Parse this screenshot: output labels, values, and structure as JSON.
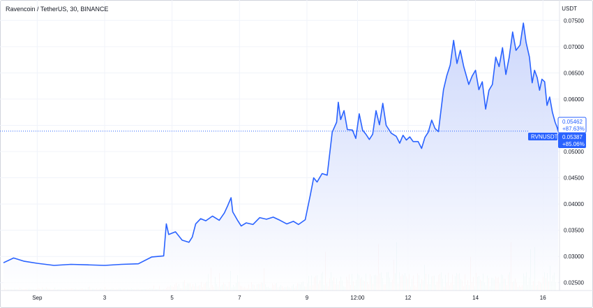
{
  "header": {
    "pair": "Ravencoin / TetherUS, 30, BINANCE",
    "unit": "USDT"
  },
  "price_badges": {
    "last": {
      "price": "0.05462",
      "change": "+87.63%"
    },
    "symbol": {
      "name": "RVNUSDT",
      "price": "0.05387",
      "change": "+85.06%"
    }
  },
  "colors": {
    "line": "#2962ff",
    "area_top": "#c7d3fb",
    "area_bottom": "#ffffff",
    "grid": "#f0f3fa",
    "volume_up": "#8fd3c4",
    "volume_down": "#f6a9a5",
    "badge_bg": "#2962ff",
    "badge_text": "#ffffff"
  },
  "chart_data": {
    "type": "area",
    "title": "Ravencoin / TetherUS, 30, BINANCE",
    "ylabel": "USDT",
    "yscale": "linear",
    "ylim": [
      0.0235,
      0.0785
    ],
    "xlim": [
      0,
      16.45
    ],
    "grid": true,
    "y_ticks": [
      "0.07500",
      "0.07000",
      "0.06500",
      "0.06000",
      "0.05500",
      "0.05000",
      "0.04500",
      "0.04000",
      "0.03500",
      "0.03000",
      "0.02500"
    ],
    "x_ticks": [
      {
        "x": 1,
        "label": "Sep"
      },
      {
        "x": 3,
        "label": "3"
      },
      {
        "x": 5,
        "label": "5"
      },
      {
        "x": 7,
        "label": "7"
      },
      {
        "x": 9,
        "label": "9"
      },
      {
        "x": 10.5,
        "label": "12:00"
      },
      {
        "x": 12,
        "label": "12"
      },
      {
        "x": 14,
        "label": "14"
      },
      {
        "x": 16,
        "label": "16"
      }
    ],
    "series": [
      {
        "values": [
          [
            0.0,
            0.0288
          ],
          [
            0.3,
            0.0297
          ],
          [
            0.6,
            0.0291
          ],
          [
            1.0,
            0.0287
          ],
          [
            1.5,
            0.0283
          ],
          [
            2.0,
            0.0285
          ],
          [
            2.5,
            0.0284
          ],
          [
            3.0,
            0.0283
          ],
          [
            3.5,
            0.0285
          ],
          [
            4.0,
            0.0286
          ],
          [
            4.4,
            0.0299
          ],
          [
            4.75,
            0.0301
          ],
          [
            4.83,
            0.0362
          ],
          [
            4.9,
            0.0342
          ],
          [
            5.1,
            0.0347
          ],
          [
            5.3,
            0.0331
          ],
          [
            5.5,
            0.0327
          ],
          [
            5.6,
            0.0337
          ],
          [
            5.7,
            0.0362
          ],
          [
            5.85,
            0.0372
          ],
          [
            6.0,
            0.0368
          ],
          [
            6.2,
            0.0377
          ],
          [
            6.4,
            0.0369
          ],
          [
            6.55,
            0.0383
          ],
          [
            6.65,
            0.0397
          ],
          [
            6.75,
            0.0412
          ],
          [
            6.8,
            0.0385
          ],
          [
            6.95,
            0.0368
          ],
          [
            7.05,
            0.0358
          ],
          [
            7.2,
            0.0364
          ],
          [
            7.4,
            0.0361
          ],
          [
            7.6,
            0.0374
          ],
          [
            7.8,
            0.0371
          ],
          [
            8.0,
            0.0375
          ],
          [
            8.2,
            0.0369
          ],
          [
            8.4,
            0.0362
          ],
          [
            8.6,
            0.0367
          ],
          [
            8.75,
            0.0361
          ],
          [
            8.95,
            0.037
          ],
          [
            9.1,
            0.0417
          ],
          [
            9.2,
            0.045
          ],
          [
            9.3,
            0.0442
          ],
          [
            9.45,
            0.0458
          ],
          [
            9.6,
            0.0455
          ],
          [
            9.75,
            0.0537
          ],
          [
            9.88,
            0.0556
          ],
          [
            9.93,
            0.0594
          ],
          [
            10.0,
            0.0561
          ],
          [
            10.1,
            0.0578
          ],
          [
            10.2,
            0.0542
          ],
          [
            10.35,
            0.0541
          ],
          [
            10.45,
            0.0525
          ],
          [
            10.55,
            0.0572
          ],
          [
            10.65,
            0.0541
          ],
          [
            10.75,
            0.0533
          ],
          [
            10.85,
            0.0523
          ],
          [
            10.95,
            0.0533
          ],
          [
            11.05,
            0.0578
          ],
          [
            11.15,
            0.0551
          ],
          [
            11.25,
            0.0592
          ],
          [
            11.35,
            0.055
          ],
          [
            11.5,
            0.0535
          ],
          [
            11.65,
            0.0529
          ],
          [
            11.75,
            0.0516
          ],
          [
            11.85,
            0.0531
          ],
          [
            11.95,
            0.0522
          ],
          [
            12.05,
            0.0528
          ],
          [
            12.15,
            0.0519
          ],
          [
            12.3,
            0.0519
          ],
          [
            12.4,
            0.0506
          ],
          [
            12.5,
            0.0527
          ],
          [
            12.6,
            0.0537
          ],
          [
            12.7,
            0.056
          ],
          [
            12.8,
            0.0544
          ],
          [
            12.9,
            0.0538
          ],
          [
            13.05,
            0.0618
          ],
          [
            13.15,
            0.0645
          ],
          [
            13.25,
            0.0665
          ],
          [
            13.35,
            0.0712
          ],
          [
            13.45,
            0.0668
          ],
          [
            13.55,
            0.0693
          ],
          [
            13.65,
            0.0662
          ],
          [
            13.8,
            0.0628
          ],
          [
            13.9,
            0.0644
          ],
          [
            14.0,
            0.0655
          ],
          [
            14.1,
            0.0618
          ],
          [
            14.2,
            0.0633
          ],
          [
            14.3,
            0.0581
          ],
          [
            14.4,
            0.0617
          ],
          [
            14.5,
            0.0628
          ],
          [
            14.6,
            0.068
          ],
          [
            14.7,
            0.0662
          ],
          [
            14.8,
            0.0698
          ],
          [
            14.9,
            0.0647
          ],
          [
            15.0,
            0.068
          ],
          [
            15.1,
            0.0728
          ],
          [
            15.2,
            0.0693
          ],
          [
            15.32,
            0.0703
          ],
          [
            15.42,
            0.0745
          ],
          [
            15.5,
            0.0708
          ],
          [
            15.6,
            0.068
          ],
          [
            15.68,
            0.0631
          ],
          [
            15.75,
            0.0655
          ],
          [
            15.83,
            0.0641
          ],
          [
            15.9,
            0.0617
          ],
          [
            15.97,
            0.0638
          ],
          [
            16.05,
            0.0633
          ],
          [
            16.12,
            0.0588
          ],
          [
            16.2,
            0.0604
          ],
          [
            16.28,
            0.0575
          ],
          [
            16.36,
            0.0556
          ],
          [
            16.42,
            0.0546
          ],
          [
            16.45,
            0.0539
          ]
        ]
      }
    ]
  }
}
